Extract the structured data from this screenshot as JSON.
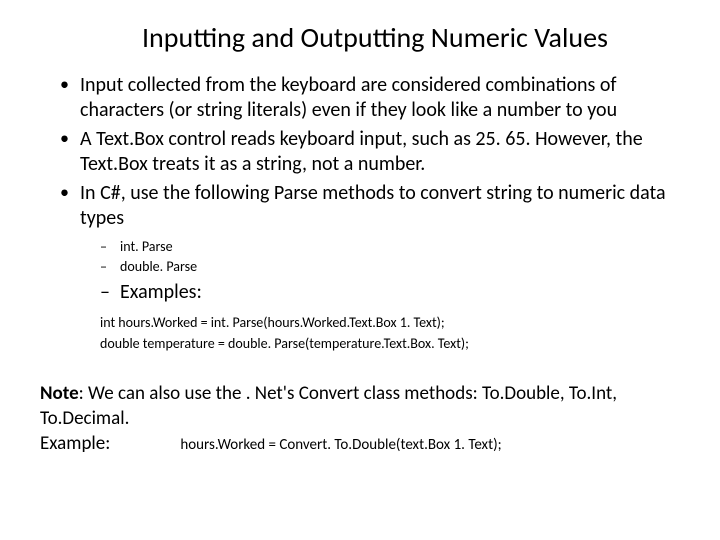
{
  "title": "Inputting and Outputting Numeric Values",
  "bullets": [
    "Input collected from the keyboard are considered combinations of characters (or string literals) even if they look like a number to you",
    "A Text.Box control reads keyboard input, such as 25. 65. However, the Text.Box treats it as a string, not a number.",
    "In C#, use the following Parse methods to convert string to numeric data types"
  ],
  "subs": [
    "int. Parse",
    "double. Parse"
  ],
  "examples_label": "Examples:",
  "code": [
    "int hours.Worked = int. Parse(hours.Worked.Text.Box 1. Text);",
    "double temperature = double. Parse(temperature.Text.Box. Text);"
  ],
  "note_label": "Note",
  "note_text": ": We can also use the . Net's Convert class methods: To.Double, To.Int, To.Decimal.",
  "example_label": "Example:",
  "example_code": "hours.Worked = Convert. To.Double(text.Box 1. Text);",
  "colors": {
    "background": "#ffffff",
    "text": "#000000"
  },
  "fonts": {
    "title_size": 28,
    "body_size": 20,
    "sub_size": 14,
    "code_size": 14,
    "note_size": 19
  }
}
